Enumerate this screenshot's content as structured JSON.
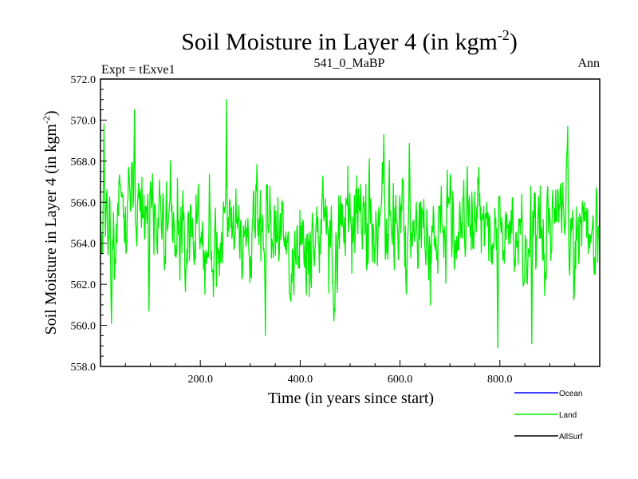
{
  "chart_data": {
    "type": "line",
    "title": "Soil Moisture in Layer 4 (in kgm",
    "title_sup": "-2",
    "title_close": ")",
    "subtitle_left": "Expt = tExve1",
    "subtitle_center": "541_0_MaBP",
    "subtitle_right": "Ann",
    "xlabel": "Time (in years since start)",
    "ylabel": "Soil Moisture in Layer 4 (in kgm",
    "ylabel_sup": "-2",
    "ylabel_close": ")",
    "xlim": [
      0,
      1000
    ],
    "ylim": [
      558,
      572
    ],
    "xticks": [
      200,
      400,
      600,
      800
    ],
    "xtick_labels": [
      "200.0",
      "400.0",
      "600.0",
      "800.0"
    ],
    "yticks": [
      558,
      560,
      562,
      564,
      566,
      568,
      570,
      572
    ],
    "ytick_labels": [
      "558.0",
      "560.0",
      "562.0",
      "564.0",
      "566.0",
      "568.0",
      "570.0",
      "572.0"
    ],
    "series": [
      {
        "name": "Land",
        "color": "#00ee00",
        "seed": 54107,
        "n_points": 1000,
        "mean": 564.6,
        "noise_std": 1.25,
        "min": 558.9,
        "max": 571.0,
        "anchors": [
          [
            2,
            563.5
          ],
          [
            7,
            569.8
          ],
          [
            22,
            560.1
          ],
          [
            68,
            570.5
          ],
          [
            97,
            560.7
          ],
          [
            252,
            571.0
          ],
          [
            330,
            559.5
          ],
          [
            567,
            569.3
          ],
          [
            795,
            558.9
          ],
          [
            863,
            559.1
          ],
          [
            935,
            569.7
          ],
          [
            990,
            562.5
          ]
        ]
      },
      {
        "name": "Ocean",
        "color": "#0000ff",
        "values": []
      },
      {
        "name": "AllSurf",
        "color": "#000000",
        "values": []
      }
    ],
    "legend": [
      {
        "label": "Ocean",
        "color": "#0000ff"
      },
      {
        "label": "Land",
        "color": "#00ee00"
      },
      {
        "label": "AllSurf",
        "color": "#000000"
      }
    ],
    "legend_position": "bottom-right",
    "grid": false
  }
}
